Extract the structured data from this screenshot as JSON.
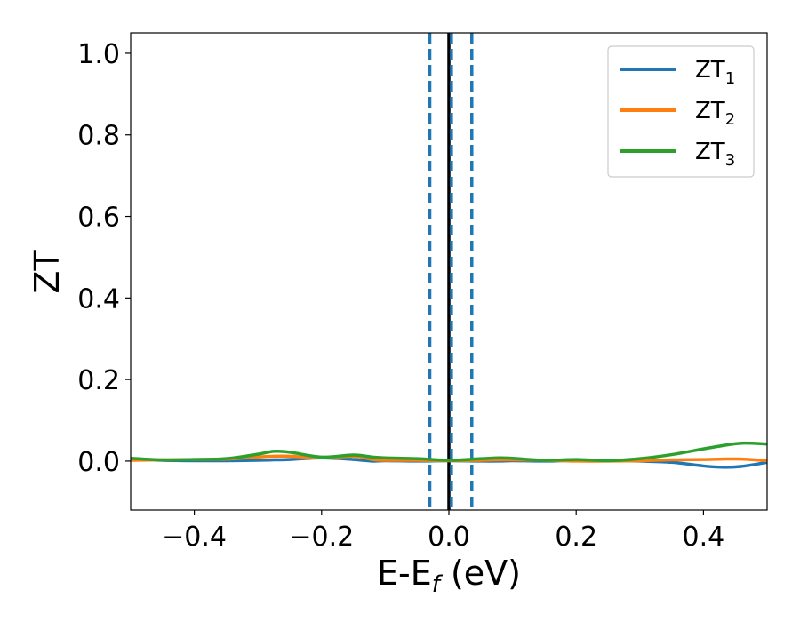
{
  "chart_data": {
    "type": "line",
    "title": "",
    "xlabel": {
      "main": "E-E",
      "sub": "f",
      "tail": " (eV)"
    },
    "ylabel": "ZT",
    "xlim": [
      -0.5,
      0.5
    ],
    "ylim": [
      -0.12,
      1.05
    ],
    "xticks": [
      -0.4,
      -0.2,
      0.0,
      0.2,
      0.4
    ],
    "xtick_labels": [
      "−0.4",
      "−0.2",
      "0.0",
      "0.2",
      "0.4"
    ],
    "yticks": [
      0.0,
      0.2,
      0.4,
      0.6,
      0.8,
      1.0
    ],
    "ytick_labels": [
      "0.0",
      "0.2",
      "0.4",
      "0.6",
      "0.8",
      "1.0"
    ],
    "grid": false,
    "legend_position": "top-right",
    "vlines": [
      {
        "x": 0.0,
        "color": "#000000",
        "style": "solid"
      },
      {
        "x": -0.03,
        "color": "#1f77b4",
        "style": "dashed"
      },
      {
        "x": 0.004,
        "color": "#1f77b4",
        "style": "dashed"
      },
      {
        "x": 0.036,
        "color": "#1f77b4",
        "style": "dashed"
      }
    ],
    "x": [
      -0.5,
      -0.45,
      -0.4,
      -0.35,
      -0.3,
      -0.275,
      -0.25,
      -0.2,
      -0.15,
      -0.12,
      -0.1,
      -0.05,
      0.0,
      0.05,
      0.08,
      0.1,
      0.15,
      0.2,
      0.25,
      0.3,
      0.35,
      0.4,
      0.43,
      0.46,
      0.5
    ],
    "series": [
      {
        "name": "ZT",
        "sub": "1",
        "color": "#1f77b4",
        "values": [
          0.005,
          0.002,
          0.001,
          0.001,
          0.002,
          0.003,
          0.004,
          0.008,
          0.004,
          0.0,
          0.001,
          0.0,
          0.001,
          0.0,
          0.0,
          0.001,
          0.0,
          0.002,
          0.002,
          0.0,
          -0.003,
          -0.012,
          -0.015,
          -0.013,
          -0.003
        ]
      },
      {
        "name": "ZT",
        "sub": "2",
        "color": "#ff7f0e",
        "values": [
          0.002,
          0.003,
          0.004,
          0.005,
          0.01,
          0.012,
          0.012,
          0.008,
          0.012,
          0.004,
          0.002,
          0.002,
          0.001,
          0.002,
          0.003,
          0.003,
          0.002,
          0.0,
          0.0,
          0.001,
          0.003,
          0.004,
          0.005,
          0.005,
          0.001
        ]
      },
      {
        "name": "ZT",
        "sub": "3",
        "color": "#2ca02c",
        "values": [
          0.007,
          0.003,
          0.004,
          0.006,
          0.017,
          0.024,
          0.022,
          0.01,
          0.015,
          0.01,
          0.008,
          0.006,
          0.002,
          0.006,
          0.008,
          0.007,
          0.002,
          0.004,
          0.001,
          0.006,
          0.016,
          0.03,
          0.038,
          0.044,
          0.042
        ]
      }
    ]
  }
}
